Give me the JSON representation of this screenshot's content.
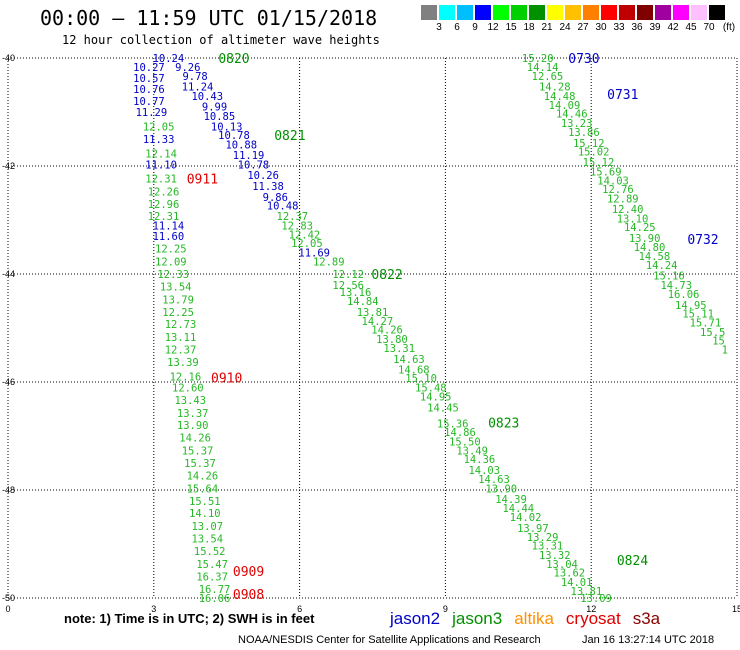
{
  "header": {
    "title": "00:00 – 11:59 UTC 01/15/2018",
    "subtitle": "12 hour collection of altimeter wave heights"
  },
  "colorbar": {
    "unit": "(ft)",
    "colors": [
      "#808080",
      "#00ffff",
      "#00bfff",
      "#0000ff",
      "#00ff00",
      "#00d000",
      "#009000",
      "#ffff00",
      "#ffc000",
      "#ff8000",
      "#ff0000",
      "#c00000",
      "#800000",
      "#a000a0",
      "#ff00ff",
      "#ffc0ff",
      "#000000"
    ],
    "labels": [
      "3",
      "6",
      "9",
      "12",
      "15",
      "18",
      "21",
      "24",
      "27",
      "30",
      "33",
      "36",
      "39",
      "42",
      "45",
      "70"
    ]
  },
  "note": "note: 1) Time is in UTC; 2) SWH is in feet",
  "legend": [
    {
      "name": "jason2",
      "color": "#0000c8"
    },
    {
      "name": "jason3",
      "color": "#009000"
    },
    {
      "name": "altika",
      "color": "#ff9000"
    },
    {
      "name": "cryosat",
      "color": "#e00000"
    },
    {
      "name": "s3a",
      "color": "#8b0000"
    }
  ],
  "footer": {
    "center": "NOAA/NESDIS Center for Satellite Applications and Research",
    "timestamp": "Jan 16 13:27:14 UTC 2018"
  },
  "chart_data": {
    "type": "scatter",
    "xlim": [
      0,
      15
    ],
    "ylim": [
      -50,
      -40
    ],
    "xticks": [
      "0",
      "3",
      "6",
      "9",
      "12",
      "15"
    ],
    "yticks": [
      "-40",
      "-42",
      "-44",
      "-46",
      "-48",
      "-50"
    ],
    "grid": true,
    "colors": {
      "jason2": "#0000c8",
      "jason3": "#26b826",
      "cryosat": "#e00000",
      "label_jason3": "#009000"
    },
    "time_labels": [
      {
        "text": "0820",
        "x": 4.65,
        "y": -40.0,
        "sat": "jason3"
      },
      {
        "text": "0821",
        "x": 5.8,
        "y": -41.43,
        "sat": "jason3"
      },
      {
        "text": "0822",
        "x": 7.8,
        "y": -44.0,
        "sat": "jason3"
      },
      {
        "text": "0823",
        "x": 10.2,
        "y": -46.75,
        "sat": "jason3"
      },
      {
        "text": "0824",
        "x": 12.85,
        "y": -49.3,
        "sat": "jason3"
      },
      {
        "text": "0730",
        "x": 11.85,
        "y": -40.0,
        "sat": "jason2"
      },
      {
        "text": "0731",
        "x": 12.65,
        "y": -40.67,
        "sat": "jason2"
      },
      {
        "text": "0732",
        "x": 14.3,
        "y": -43.35,
        "sat": "jason2"
      },
      {
        "text": "0911",
        "x": 4.0,
        "y": -42.23,
        "sat": "cryosat"
      },
      {
        "text": "0910",
        "x": 4.5,
        "y": -45.92,
        "sat": "cryosat"
      },
      {
        "text": "0909",
        "x": 4.95,
        "y": -49.5,
        "sat": "cryosat"
      },
      {
        "text": "0908",
        "x": 4.95,
        "y": -49.93,
        "sat": "cryosat"
      }
    ],
    "series": [
      {
        "sat": "jason2",
        "points": [
          {
            "x": 3.3,
            "y": -40.0,
            "v": "10.24"
          },
          {
            "x": 3.7,
            "y": -40.17,
            "v": "9.26"
          },
          {
            "x": 2.9,
            "y": -40.17,
            "v": "10.27"
          },
          {
            "x": 3.85,
            "y": -40.33,
            "v": "9.78"
          },
          {
            "x": 2.9,
            "y": -40.37,
            "v": "10.57"
          },
          {
            "x": 3.9,
            "y": -40.53,
            "v": "11.24"
          },
          {
            "x": 2.9,
            "y": -40.57,
            "v": "10.76"
          },
          {
            "x": 4.1,
            "y": -40.7,
            "v": "10.43"
          },
          {
            "x": 2.9,
            "y": -40.8,
            "v": "10.77"
          },
          {
            "x": 4.25,
            "y": -40.9,
            "v": "9.99"
          },
          {
            "x": 2.95,
            "y": -41.0,
            "v": "11.29"
          },
          {
            "x": 4.35,
            "y": -41.07,
            "v": "10.85"
          },
          {
            "x": 4.5,
            "y": -41.27,
            "v": "10.13"
          },
          {
            "x": 4.65,
            "y": -41.43,
            "v": "10.78"
          },
          {
            "x": 3.1,
            "y": -41.5,
            "v": "11.33"
          },
          {
            "x": 4.8,
            "y": -41.6,
            "v": "10.88"
          },
          {
            "x": 4.95,
            "y": -41.8,
            "v": "11.19"
          },
          {
            "x": 3.15,
            "y": -41.97,
            "v": "11.10"
          },
          {
            "x": 5.05,
            "y": -41.97,
            "v": "10.78"
          },
          {
            "x": 5.25,
            "y": -42.17,
            "v": "10.26"
          },
          {
            "x": 5.35,
            "y": -42.37,
            "v": "11.38"
          },
          {
            "x": 5.5,
            "y": -42.57,
            "v": "9.86"
          },
          {
            "x": 5.65,
            "y": -42.73,
            "v": "10.48"
          },
          {
            "x": 3.3,
            "y": -43.1,
            "v": "11.14"
          },
          {
            "x": 3.3,
            "y": -43.3,
            "v": "11.60"
          },
          {
            "x": 6.3,
            "y": -43.6,
            "v": "11.69"
          }
        ]
      },
      {
        "sat": "jason3",
        "points": [
          {
            "x": 3.1,
            "y": -41.27,
            "v": "12.05"
          },
          {
            "x": 3.15,
            "y": -41.77,
            "v": "12.14"
          },
          {
            "x": 3.15,
            "y": -42.23,
            "v": "12.31"
          },
          {
            "x": 3.2,
            "y": -42.47,
            "v": "12.26"
          },
          {
            "x": 3.2,
            "y": -42.7,
            "v": "12.96"
          },
          {
            "x": 3.2,
            "y": -42.93,
            "v": "12.31"
          },
          {
            "x": 5.85,
            "y": -42.93,
            "v": "12.37"
          },
          {
            "x": 5.95,
            "y": -43.1,
            "v": "12.83"
          },
          {
            "x": 6.1,
            "y": -43.27,
            "v": "12.42"
          },
          {
            "x": 3.35,
            "y": -43.53,
            "v": "12.25"
          },
          {
            "x": 6.15,
            "y": -43.43,
            "v": "12.05"
          },
          {
            "x": 3.35,
            "y": -43.77,
            "v": "12.09"
          },
          {
            "x": 6.6,
            "y": -43.77,
            "v": "12.89"
          },
          {
            "x": 3.4,
            "y": -44.0,
            "v": "12.33"
          },
          {
            "x": 7.0,
            "y": -44.0,
            "v": "12.12"
          },
          {
            "x": 7.0,
            "y": -44.2,
            "v": "12.56"
          },
          {
            "x": 3.45,
            "y": -44.23,
            "v": "13.54"
          },
          {
            "x": 7.15,
            "y": -44.33,
            "v": "13.16"
          },
          {
            "x": 3.5,
            "y": -44.47,
            "v": "13.79"
          },
          {
            "x": 7.3,
            "y": -44.5,
            "v": "14.84"
          },
          {
            "x": 3.5,
            "y": -44.7,
            "v": "12.25"
          },
          {
            "x": 7.5,
            "y": -44.7,
            "v": "13.81"
          },
          {
            "x": 7.6,
            "y": -44.87,
            "v": "14.27"
          },
          {
            "x": 3.55,
            "y": -44.93,
            "v": "12.73"
          },
          {
            "x": 7.8,
            "y": -45.03,
            "v": "14.26"
          },
          {
            "x": 3.55,
            "y": -45.17,
            "v": "13.11"
          },
          {
            "x": 7.9,
            "y": -45.2,
            "v": "13.80"
          },
          {
            "x": 3.55,
            "y": -45.4,
            "v": "12.37"
          },
          {
            "x": 8.05,
            "y": -45.37,
            "v": "13.31"
          },
          {
            "x": 8.25,
            "y": -45.57,
            "v": "14.63"
          },
          {
            "x": 3.6,
            "y": -45.63,
            "v": "13.39"
          },
          {
            "x": 8.35,
            "y": -45.77,
            "v": "14.68"
          },
          {
            "x": 3.65,
            "y": -45.9,
            "v": "12.16"
          },
          {
            "x": 8.5,
            "y": -45.93,
            "v": "15.10"
          },
          {
            "x": 3.7,
            "y": -46.1,
            "v": "12.60"
          },
          {
            "x": 8.7,
            "y": -46.1,
            "v": "15.48"
          },
          {
            "x": 3.75,
            "y": -46.33,
            "v": "13.43"
          },
          {
            "x": 8.8,
            "y": -46.27,
            "v": "14.95"
          },
          {
            "x": 8.95,
            "y": -46.47,
            "v": "14.45"
          },
          {
            "x": 3.8,
            "y": -46.57,
            "v": "13.37"
          },
          {
            "x": 9.15,
            "y": -46.77,
            "v": "15.36"
          },
          {
            "x": 3.8,
            "y": -46.8,
            "v": "13.90"
          },
          {
            "x": 9.3,
            "y": -46.93,
            "v": "14.86"
          },
          {
            "x": 3.85,
            "y": -47.03,
            "v": "14.26"
          },
          {
            "x": 9.4,
            "y": -47.1,
            "v": "15.50"
          },
          {
            "x": 3.9,
            "y": -47.27,
            "v": "15.37"
          },
          {
            "x": 9.55,
            "y": -47.27,
            "v": "13.49"
          },
          {
            "x": 3.95,
            "y": -47.5,
            "v": "15.37"
          },
          {
            "x": 9.7,
            "y": -47.43,
            "v": "14.36"
          },
          {
            "x": 9.8,
            "y": -47.63,
            "v": "14.03"
          },
          {
            "x": 4.0,
            "y": -47.73,
            "v": "14.26"
          },
          {
            "x": 10.0,
            "y": -47.8,
            "v": "14.63"
          },
          {
            "x": 4.0,
            "y": -47.97,
            "v": "15.64"
          },
          {
            "x": 10.15,
            "y": -47.97,
            "v": "13.90"
          },
          {
            "x": 4.05,
            "y": -48.2,
            "v": "15.51"
          },
          {
            "x": 10.35,
            "y": -48.17,
            "v": "14.39"
          },
          {
            "x": 10.5,
            "y": -48.33,
            "v": "14.44"
          },
          {
            "x": 4.05,
            "y": -48.43,
            "v": "14.10"
          },
          {
            "x": 10.65,
            "y": -48.5,
            "v": "14.02"
          },
          {
            "x": 4.1,
            "y": -48.67,
            "v": "13.07"
          },
          {
            "x": 10.8,
            "y": -48.7,
            "v": "13.97"
          },
          {
            "x": 4.1,
            "y": -48.9,
            "v": "13.54"
          },
          {
            "x": 11.0,
            "y": -48.87,
            "v": "13.29"
          },
          {
            "x": 11.1,
            "y": -49.03,
            "v": "13.31"
          },
          {
            "x": 4.15,
            "y": -49.13,
            "v": "15.52"
          },
          {
            "x": 11.25,
            "y": -49.2,
            "v": "13.32"
          },
          {
            "x": 11.4,
            "y": -49.37,
            "v": "13.04"
          },
          {
            "x": 4.2,
            "y": -49.37,
            "v": "15.47"
          },
          {
            "x": 11.55,
            "y": -49.53,
            "v": "13.62"
          },
          {
            "x": 4.2,
            "y": -49.6,
            "v": "16.37"
          },
          {
            "x": 11.7,
            "y": -49.7,
            "v": "14.01"
          },
          {
            "x": 4.25,
            "y": -49.83,
            "v": "16.77"
          },
          {
            "x": 11.9,
            "y": -49.87,
            "v": "13.81"
          },
          {
            "x": 4.25,
            "y": -50.0,
            "v": "16.06"
          },
          {
            "x": 12.1,
            "y": -50.0,
            "v": "13.09"
          },
          {
            "x": 10.9,
            "y": -40.0,
            "v": "15.20"
          },
          {
            "x": 11.0,
            "y": -40.17,
            "v": "14.14"
          },
          {
            "x": 11.1,
            "y": -40.33,
            "v": "12.65"
          },
          {
            "x": 11.25,
            "y": -40.53,
            "v": "14.28"
          },
          {
            "x": 11.35,
            "y": -40.7,
            "v": "14.48"
          },
          {
            "x": 11.45,
            "y": -40.87,
            "v": "14.09"
          },
          {
            "x": 11.6,
            "y": -41.03,
            "v": "14.46"
          },
          {
            "x": 11.7,
            "y": -41.2,
            "v": "13.23"
          },
          {
            "x": 11.85,
            "y": -41.37,
            "v": "13.86"
          },
          {
            "x": 11.95,
            "y": -41.57,
            "v": "15.12"
          },
          {
            "x": 12.05,
            "y": -41.73,
            "v": "15.02"
          },
          {
            "x": 12.15,
            "y": -41.93,
            "v": "15.12"
          },
          {
            "x": 12.3,
            "y": -42.1,
            "v": "15.69"
          },
          {
            "x": 12.45,
            "y": -42.27,
            "v": "14.03"
          },
          {
            "x": 12.55,
            "y": -42.43,
            "v": "12.76"
          },
          {
            "x": 12.65,
            "y": -42.6,
            "v": "12.89"
          },
          {
            "x": 12.75,
            "y": -42.8,
            "v": "12.40"
          },
          {
            "x": 12.85,
            "y": -42.97,
            "v": "13.10"
          },
          {
            "x": 13.0,
            "y": -43.13,
            "v": "14.25"
          },
          {
            "x": 13.1,
            "y": -43.33,
            "v": "13.90"
          },
          {
            "x": 13.2,
            "y": -43.5,
            "v": "14.80"
          },
          {
            "x": 13.3,
            "y": -43.67,
            "v": "14.58"
          },
          {
            "x": 13.45,
            "y": -43.83,
            "v": "14.24"
          },
          {
            "x": 13.6,
            "y": -44.03,
            "v": "15.16"
          },
          {
            "x": 13.75,
            "y": -44.2,
            "v": "14.73"
          },
          {
            "x": 13.9,
            "y": -44.37,
            "v": "16.06"
          },
          {
            "x": 14.05,
            "y": -44.57,
            "v": "14.95"
          },
          {
            "x": 14.2,
            "y": -44.73,
            "v": "15.11"
          },
          {
            "x": 14.35,
            "y": -44.9,
            "v": "15.71"
          },
          {
            "x": 14.5,
            "y": -45.07,
            "v": "15.5"
          },
          {
            "x": 14.62,
            "y": -45.23,
            "v": "15"
          },
          {
            "x": 14.75,
            "y": -45.4,
            "v": "1"
          }
        ]
      }
    ]
  }
}
